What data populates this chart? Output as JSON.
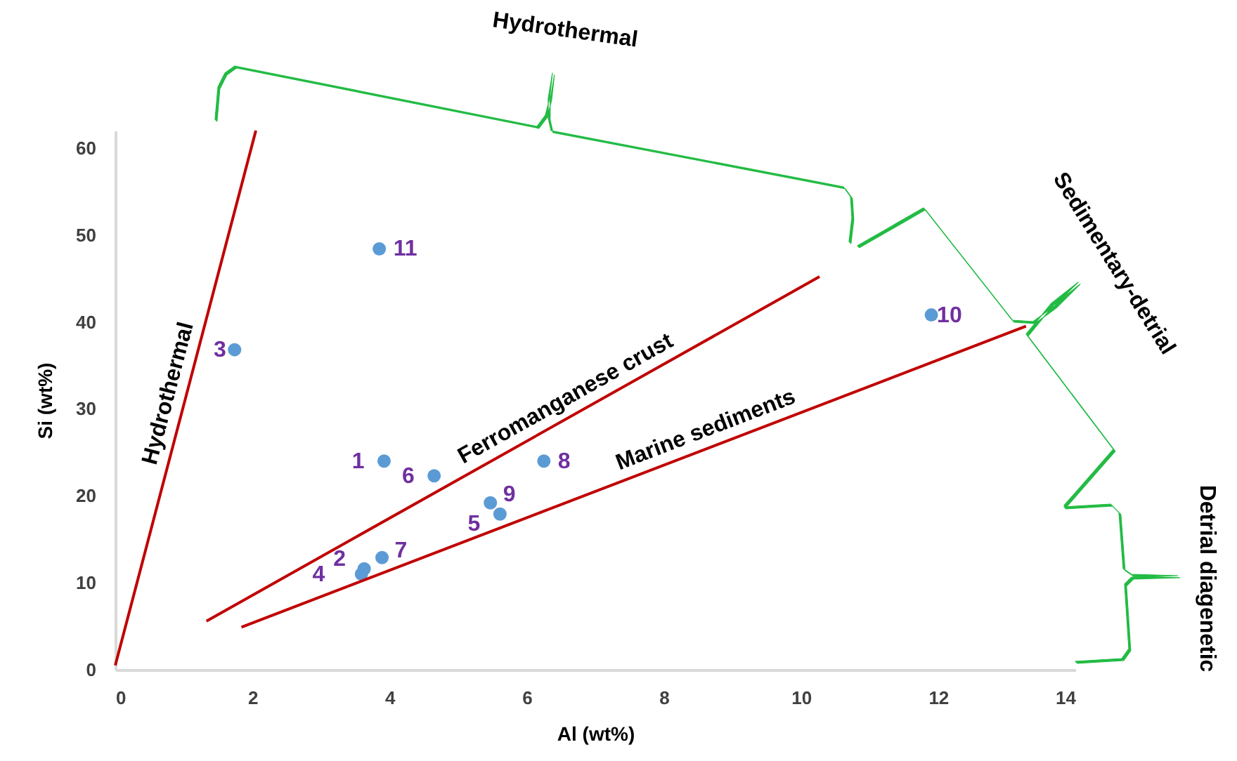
{
  "chart_data": {
    "type": "scatter",
    "xlabel": "Al (wt%)",
    "ylabel": "Si (wt%)",
    "xlim": [
      0,
      14
    ],
    "xticks": [
      0,
      2,
      4,
      6,
      8,
      10,
      12,
      14
    ],
    "ylim": [
      0,
      62
    ],
    "yticks": [
      0,
      10,
      20,
      30,
      40,
      50,
      60
    ],
    "series": [
      {
        "color": "#5b9bd5",
        "marker": "circle",
        "x": [
          3.92,
          3.63,
          1.74,
          3.59,
          5.61,
          4.65,
          3.89,
          6.25,
          5.47,
          11.9,
          3.85
        ],
        "values": [
          24.0,
          11.6,
          36.8,
          11.0,
          17.9,
          22.3,
          12.9,
          24.0,
          19.2,
          40.8,
          48.4
        ]
      },
      {
        "type": "line",
        "marker": "none",
        "name": "Hydrothermal",
        "color": "#c00000",
        "x": [
          0,
          2.05
        ],
        "values": [
          0.5,
          62
        ]
      },
      {
        "type": "line",
        "marker": "none",
        "name": "Ferromanganese crust",
        "color": "#c00000",
        "x": [
          1.33,
          10.27
        ],
        "values": [
          5.6,
          45.2
        ]
      },
      {
        "type": "line",
        "marker": "none",
        "name": "Marine sediments",
        "color": "#c00000",
        "x": [
          1.84,
          13.28
        ],
        "values": [
          4.9,
          39.5
        ]
      }
    ],
    "annotations": [
      "Hydrothermal",
      "Sedimentary-detrial",
      "Detrial diagenetic",
      {
        "text": "1",
        "x": 3.92,
        "y": 24.0
      },
      {
        "text": "2",
        "x": 3.63,
        "y": 11.6
      },
      {
        "text": "3",
        "x": 1.74,
        "y": 36.8
      },
      {
        "text": "4",
        "x": 3.59,
        "y": 11.0
      },
      {
        "text": "5",
        "x": 5.61,
        "y": 17.9
      },
      {
        "text": "6",
        "x": 4.65,
        "y": 22.3
      },
      {
        "text": "7",
        "x": 3.89,
        "y": 12.9
      },
      {
        "text": "8",
        "x": 6.25,
        "y": 24.0
      },
      {
        "text": "9",
        "x": 5.47,
        "y": 19.2
      },
      {
        "text": "10",
        "x": 11.9,
        "y": 40.8
      },
      {
        "text": "11",
        "x": 3.85,
        "y": 48.4
      }
    ]
  }
}
